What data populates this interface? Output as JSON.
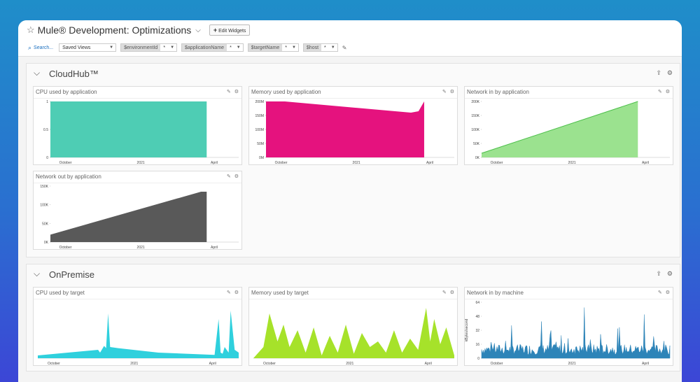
{
  "header": {
    "title": "Mule® Development: Optimizations",
    "edit_widgets_label": "Edit Widgets",
    "search_label": "Search...",
    "saved_views_label": "Saved Views",
    "filters": [
      {
        "key": "$environmentId",
        "value": "*"
      },
      {
        "key": "$applicationName",
        "value": "*"
      },
      {
        "key": "$targetName",
        "value": "*"
      },
      {
        "key": "$host",
        "value": "*"
      }
    ]
  },
  "groups": [
    {
      "title": "CloudHub™"
    },
    {
      "title": "OnPremise"
    }
  ],
  "widgets": {
    "cpu_app": {
      "title": "CPU used by application"
    },
    "mem_app": {
      "title": "Memory used by application"
    },
    "netin_app": {
      "title": "Network in by application"
    },
    "netout_app": {
      "title": "Network out by application"
    },
    "cpu_target": {
      "title": "CPU used by target"
    },
    "mem_target": {
      "title": "Memory used by target"
    },
    "netin_machine": {
      "title": "Network in by machine"
    }
  },
  "colors": {
    "cpu_app": "#4ecdb4",
    "mem_app": "#e5127e",
    "netin_app": "#9be28f",
    "netin_app_line": "#4cbf4a",
    "netout_app": "#595959",
    "cpu_target": "#2fd0dd",
    "mem_target": "#a6e22a",
    "netin_machine": "#2d84b8"
  },
  "chart_data": [
    {
      "type": "area",
      "title": "CPU used by application",
      "x_ticks": [
        "October",
        "2021",
        "April"
      ],
      "y_ticks": [
        "0",
        "0.5",
        "1"
      ],
      "ylim": [
        0,
        1
      ],
      "series": [
        {
          "x": [
            0,
            0.83
          ],
          "values": [
            1,
            1
          ]
        }
      ]
    },
    {
      "type": "area",
      "title": "Memory used by application",
      "x_ticks": [
        "October",
        "2021",
        "April"
      ],
      "y_ticks": [
        "0M",
        "50M",
        "100M",
        "150M",
        "200M"
      ],
      "ylim": [
        0,
        200
      ],
      "series": [
        {
          "x": [
            0,
            0.1,
            0.77,
            0.81,
            0.84
          ],
          "values": [
            200,
            200,
            160,
            165,
            200
          ]
        }
      ]
    },
    {
      "type": "area",
      "title": "Network in by application",
      "x_ticks": [
        "October",
        "2021",
        "April"
      ],
      "y_ticks": [
        "0K",
        "50K",
        "100K",
        "150K",
        "200K"
      ],
      "ylim": [
        0,
        200
      ],
      "series": [
        {
          "x": [
            0,
            0.83
          ],
          "values": [
            15,
            200
          ]
        }
      ]
    },
    {
      "type": "area",
      "title": "Network out by application",
      "x_ticks": [
        "October",
        "2021",
        "April"
      ],
      "y_ticks": [
        "0K",
        "50K",
        "100K",
        "150K"
      ],
      "ylim": [
        0,
        150
      ],
      "series": [
        {
          "x": [
            0,
            0.8,
            0.83
          ],
          "values": [
            20,
            135,
            135
          ]
        }
      ]
    },
    {
      "type": "area",
      "title": "CPU used by target",
      "x_ticks": [
        "October",
        "2021",
        "April"
      ],
      "y_ticks": [],
      "ylim": [
        0,
        100
      ],
      "series": [
        {
          "x": [
            0,
            0.3,
            0.31,
            0.33,
            0.34,
            0.35,
            0.36,
            0.4,
            0.6,
            0.88,
            0.9,
            0.91,
            0.92,
            0.93,
            0.95,
            0.96,
            0.98,
            1.0
          ],
          "values": [
            5,
            15,
            10,
            22,
            18,
            80,
            20,
            18,
            10,
            6,
            70,
            10,
            8,
            20,
            10,
            85,
            15,
            10
          ]
        }
      ]
    },
    {
      "type": "area",
      "title": "Memory used by target",
      "x_ticks": [
        "October",
        "2021",
        "April"
      ],
      "y_ticks": [],
      "ylim": [
        0,
        100
      ],
      "series": [
        {
          "x": [
            0,
            0.05,
            0.08,
            0.12,
            0.15,
            0.18,
            0.22,
            0.26,
            0.3,
            0.34,
            0.38,
            0.42,
            0.46,
            0.5,
            0.54,
            0.58,
            0.62,
            0.66,
            0.7,
            0.74,
            0.78,
            0.82,
            0.86,
            0.88,
            0.9,
            0.93,
            0.96,
            1.0
          ],
          "values": [
            0,
            20,
            80,
            30,
            60,
            20,
            50,
            10,
            55,
            5,
            40,
            10,
            60,
            8,
            45,
            20,
            30,
            10,
            50,
            10,
            35,
            15,
            90,
            30,
            70,
            25,
            55,
            5
          ]
        }
      ]
    },
    {
      "type": "area",
      "title": "Network in by machine",
      "x_ticks": [
        "October",
        "2021",
        "April"
      ],
      "y_ticks": [
        "0",
        "16",
        "32",
        "48",
        "64"
      ],
      "ylabel": "kBytes/second",
      "ylim": [
        0,
        64
      ],
      "series": [
        {
          "note_free": true
        }
      ]
    }
  ]
}
